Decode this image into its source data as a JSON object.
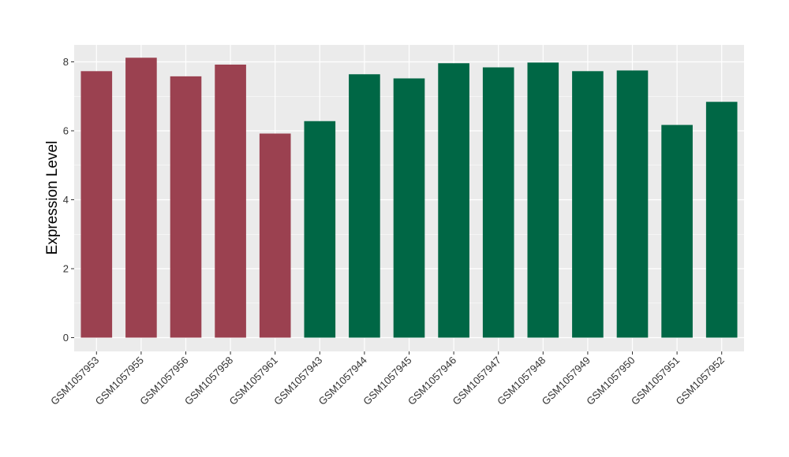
{
  "chart_data": {
    "type": "bar",
    "title": "",
    "xlabel": "",
    "ylabel": "Expression Level",
    "ylim": [
      0,
      8.4
    ],
    "yticks": [
      0,
      2,
      4,
      6,
      8
    ],
    "grid": true,
    "categories": [
      "GSM1057953",
      "GSM1057955",
      "GSM1057956",
      "GSM1057958",
      "GSM1057961",
      "GSM1057943",
      "GSM1057944",
      "GSM1057945",
      "GSM1057946",
      "GSM1057947",
      "GSM1057948",
      "GSM1057949",
      "GSM1057950",
      "GSM1057951",
      "GSM1057952"
    ],
    "values": [
      7.73,
      8.12,
      7.58,
      7.92,
      5.92,
      6.28,
      7.64,
      7.52,
      7.96,
      7.84,
      7.98,
      7.73,
      7.75,
      6.17,
      6.84
    ],
    "bar_colors": [
      "#9b4150",
      "#9b4150",
      "#9b4150",
      "#9b4150",
      "#9b4150",
      "#006745",
      "#006745",
      "#006745",
      "#006745",
      "#006745",
      "#006745",
      "#006745",
      "#006745",
      "#006745",
      "#006745"
    ],
    "panel_background": "#ebebeb",
    "gridline_color": "#ffffff"
  }
}
